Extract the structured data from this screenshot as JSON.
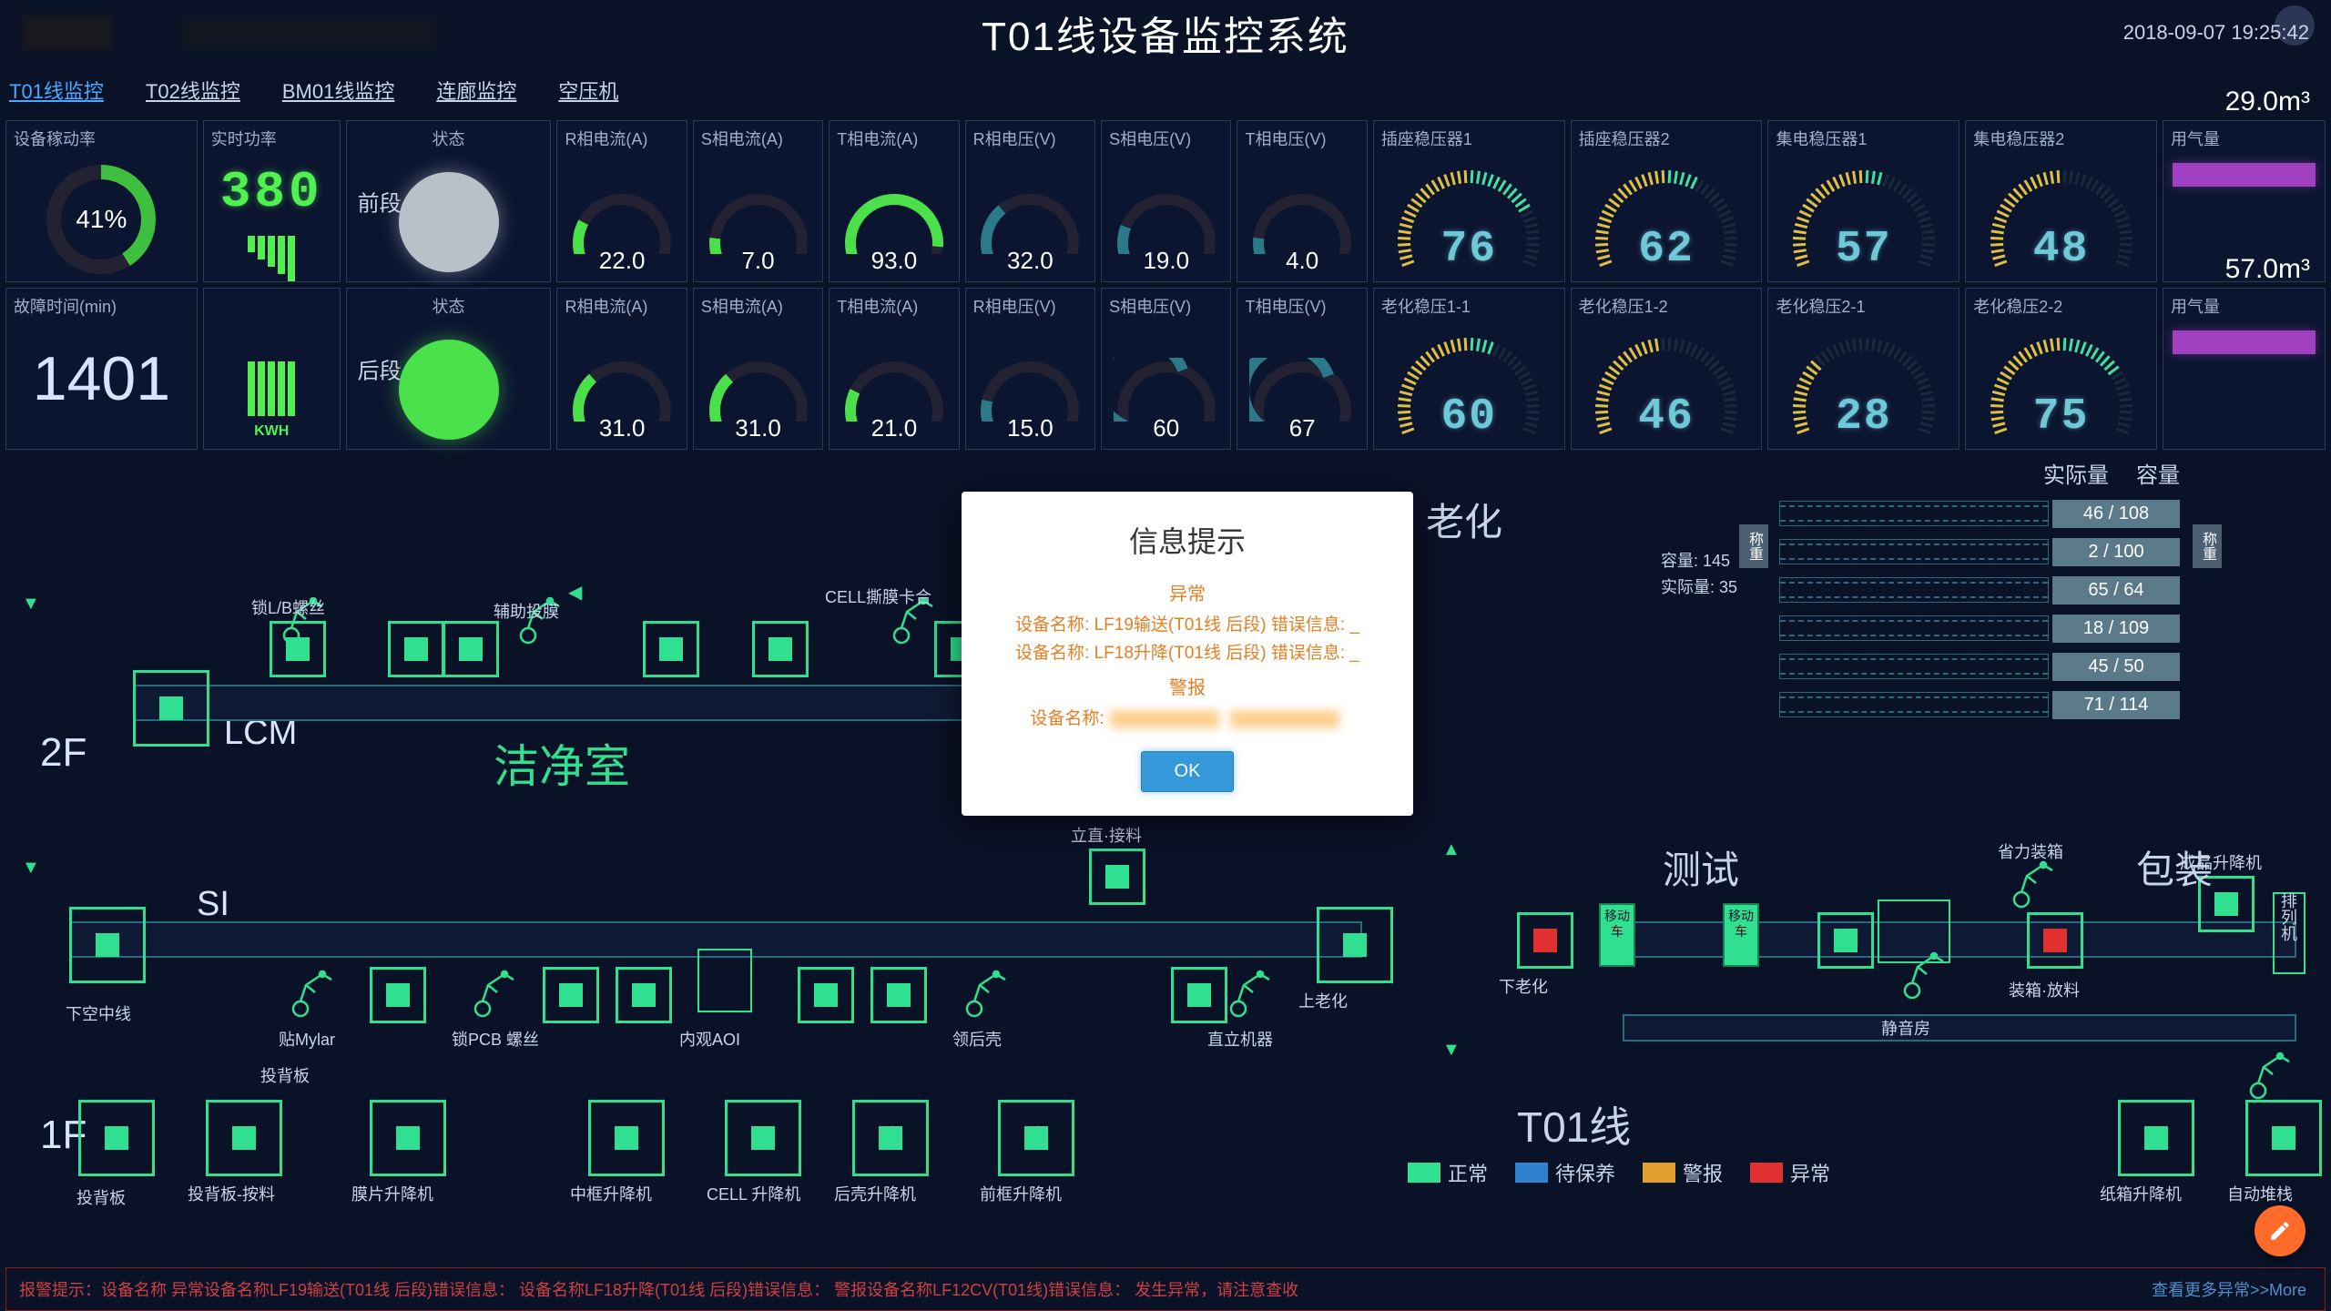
{
  "header": {
    "title": "T01线设备监控系统",
    "timestamp": "2018-09-07 19:25:42"
  },
  "nav": {
    "items": [
      "T01线监控",
      "T02线监控",
      "BM01线监控",
      "连廊监控",
      "空压机"
    ],
    "active": 0
  },
  "kpi": {
    "efficiency_label": "设备稼动率",
    "efficiency_value": "41%",
    "power_label": "实时功率",
    "power_value": "380",
    "power_unit": "KWH",
    "fault_label": "故障时间(min)",
    "fault_value": "1401"
  },
  "segments": {
    "front": "前段",
    "rear": "后段"
  },
  "gauge_labels": {
    "status": "状态",
    "r_current": "R相电流(A)",
    "s_current": "S相电流(A)",
    "t_current": "T相电流(A)",
    "r_volt": "R相电压(V)",
    "s_volt": "S相电压(V)",
    "t_volt": "T相电压(V)"
  },
  "front_row": {
    "status_color": "#b8c0c8",
    "arcs": [
      {
        "label": "R相电流(A)",
        "value": "22.0",
        "color": "#4ae04a"
      },
      {
        "label": "S相电流(A)",
        "value": "7.0",
        "color": "#4ae04a"
      },
      {
        "label": "T相电流(A)",
        "value": "93.0",
        "color": "#4ae04a"
      },
      {
        "label": "R相电压(V)",
        "value": "32.0",
        "color": "#2a7a8a"
      },
      {
        "label": "S相电压(V)",
        "value": "19.0",
        "color": "#2a7a8a"
      },
      {
        "label": "T相电压(V)",
        "value": "4.0",
        "color": "#2a7a8a"
      }
    ],
    "radials": [
      {
        "label": "插座稳压器1",
        "value": "76"
      },
      {
        "label": "插座稳压器2",
        "value": "62"
      },
      {
        "label": "集电稳压器1",
        "value": "57"
      },
      {
        "label": "集电稳压器2",
        "value": "48"
      }
    ],
    "gas": {
      "label": "用气量",
      "value": "29.0m³"
    }
  },
  "rear_row": {
    "status_color": "#4ae04a",
    "arcs": [
      {
        "label": "R相电流(A)",
        "value": "31.0",
        "color": "#4ae04a"
      },
      {
        "label": "S相电流(A)",
        "value": "31.0",
        "color": "#4ae04a"
      },
      {
        "label": "T相电流(A)",
        "value": "21.0",
        "color": "#4ae04a"
      },
      {
        "label": "R相电压(V)",
        "value": "15.0",
        "color": "#2a7a8a"
      },
      {
        "label": "S相电压(V)",
        "value": "60",
        "color": "#2a7a8a"
      },
      {
        "label": "T相电压(V)",
        "value": "67",
        "color": "#2a7a8a"
      }
    ],
    "radials": [
      {
        "label": "老化稳压1-1",
        "value": "60"
      },
      {
        "label": "老化稳压1-2",
        "value": "46"
      },
      {
        "label": "老化稳压2-1",
        "value": "28"
      },
      {
        "label": "老化稳压2-2",
        "value": "75"
      }
    ],
    "gas": {
      "label": "用气量",
      "value": "57.0m³"
    }
  },
  "diagram": {
    "floor2": "2F",
    "floor1": "1F",
    "lcm": "LCM",
    "cleanroom": "洁净室",
    "si": "SI",
    "aging": "老化",
    "test": "测试",
    "pack": "包装",
    "line": "T01线",
    "labels": {
      "lb_screw": "锁L/B螺丝",
      "aux_feed": "辅助投膜",
      "cell_press": "CELL撕膜卡合",
      "below_empty": "下空中线",
      "mylar": "贴Mylar",
      "pcb_screw": "锁PCB 螺丝",
      "aoi": "内观AOI",
      "rear_shell": "领后壳",
      "upright_feed": "立直·接料",
      "up_robot": "直立机器",
      "up_aging": "上老化",
      "put_back": "投背板",
      "back_screen": "投背板-按料",
      "film_lift": "膜片升降机",
      "mid_lift": "中框升降机",
      "cell_lift": "CELL 升降机",
      "rear_lift": "后壳升降机",
      "front_lift": "前框升降机",
      "down_aging": "下老化",
      "quiet_room": "静音房",
      "box_feed": "装箱·放料",
      "fin_lift": "成品升降机",
      "arrange": "排列机",
      "box_lift": "纸箱升降机",
      "auto_stack": "自动堆栈",
      "save_box": "省力装箱",
      "car": "移动车"
    },
    "capacity": {
      "hdr_actual": "实际量",
      "hdr_cap": "容量",
      "total_cap_lbl": "容量:",
      "total_cap": "145",
      "actual_lbl": "实际量:",
      "actual": "35",
      "side1": "称重",
      "side2": "称重",
      "rows": [
        {
          "v": "46 / 108"
        },
        {
          "v": "2 / 100"
        },
        {
          "v": "65 / 64"
        },
        {
          "v": "18 / 109"
        },
        {
          "v": "45 / 50"
        },
        {
          "v": "71 / 114"
        }
      ]
    },
    "legend": [
      {
        "c": "#30e090",
        "t": "正常"
      },
      {
        "c": "#3080d0",
        "t": "待保养"
      },
      {
        "c": "#e0a030",
        "t": "警报"
      },
      {
        "c": "#e03030",
        "t": "异常"
      }
    ]
  },
  "alert": {
    "prefix": "报警提示：",
    "text": "设备名称 异常设备名称LF19输送(T01线 后段)错误信息：  设备名称LF18升降(T01线 后段)错误信息：  警报设备名称LF12CV(T01线)错误信息：  发生异常，请注意查收",
    "more": "查看更多异常>>More"
  },
  "modal": {
    "title": "信息提示",
    "sub": "异常",
    "line1": "设备名称: LF19输送(T01线 后段) 错误信息: _",
    "line2": "设备名称: LF18升降(T01线 后段) 错误信息: _",
    "warn": "警报",
    "name_lbl": "设备名称:",
    "ok": "OK"
  },
  "colors": {
    "bg": "#0a1228",
    "panel": "#0c1530",
    "border": "#2a3a5a",
    "green": "#30e090",
    "seg7": "#4ff04f",
    "cyan": "#6fc8d8",
    "purple": "#a040c0",
    "orange": "#e67e22",
    "blue": "#3498db"
  }
}
